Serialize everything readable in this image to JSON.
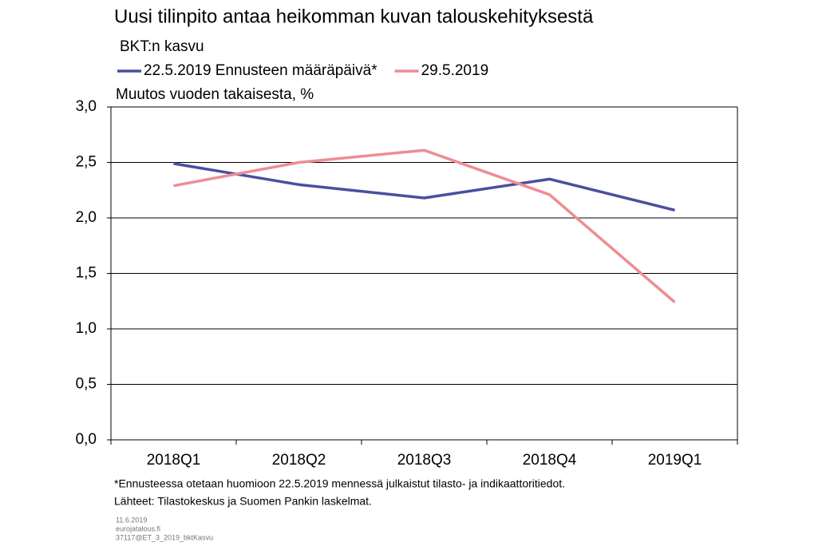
{
  "chart_data": {
    "type": "line",
    "title": "Uusi tilinpito antaa heikomman kuvan talouskehityksestä",
    "subtitle": "BKT:n kasvu",
    "y_label": "Muutos vuoden takaisesta, %",
    "categories": [
      "2018Q1",
      "2018Q2",
      "2018Q3",
      "2018Q4",
      "2019Q1"
    ],
    "series": [
      {
        "name": "22.5.2019 Ennusteen määräpäivä*",
        "color": "#4b4f9e",
        "values": [
          2.49,
          2.3,
          2.18,
          2.35,
          2.07
        ]
      },
      {
        "name": "29.5.2019",
        "color": "#ee8d92",
        "values": [
          2.29,
          2.5,
          2.61,
          2.21,
          1.24
        ]
      }
    ],
    "ylim": [
      0,
      3
    ],
    "yticks": [
      {
        "value": 0,
        "label": "0,0"
      },
      {
        "value": 0.5,
        "label": "0,5"
      },
      {
        "value": 1,
        "label": "1,0"
      },
      {
        "value": 1.5,
        "label": "1,5"
      },
      {
        "value": 2,
        "label": "2,0"
      },
      {
        "value": 2.5,
        "label": "2,5"
      },
      {
        "value": 3,
        "label": "3,0"
      }
    ],
    "grid": true,
    "notes": [
      "*Ennusteessa otetaan huomioon 22.5.2019 mennessä julkaistut tilasto- ja indikaattoritiedot.",
      "Lähteet: Tilastokeskus ja Suomen Pankin laskelmat."
    ],
    "footer": [
      "11.6.2019",
      "eurojatalous.fi",
      "37117@ET_3_2019_bktKasvu"
    ]
  }
}
